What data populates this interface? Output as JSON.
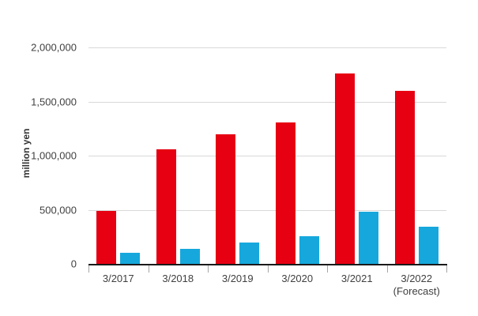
{
  "chart_data": {
    "type": "bar",
    "title": "",
    "xlabel": "",
    "ylabel": "million yen",
    "ylim": [
      0,
      2000000
    ],
    "grid": true,
    "legend": false,
    "yticks": [
      {
        "value": 0,
        "label": "0"
      },
      {
        "value": 500000,
        "label": "500,000"
      },
      {
        "value": 1000000,
        "label": "1,000,000"
      },
      {
        "value": 1500000,
        "label": "1,500,000"
      },
      {
        "value": 2000000,
        "label": "2,000,000"
      }
    ],
    "categories": [
      {
        "label": "3/2017",
        "sublabel": ""
      },
      {
        "label": "3/2018",
        "sublabel": ""
      },
      {
        "label": "3/2019",
        "sublabel": ""
      },
      {
        "label": "3/2020",
        "sublabel": ""
      },
      {
        "label": "3/2021",
        "sublabel": ""
      },
      {
        "label": "3/2022",
        "sublabel": "(Forecast)"
      }
    ],
    "series": [
      {
        "name": "red",
        "color": "#e60012",
        "values": [
          490000,
          1055000,
          1200000,
          1305000,
          1760000,
          1600000
        ]
      },
      {
        "name": "blue",
        "color": "#16a8dc",
        "values": [
          100000,
          140000,
          195000,
          255000,
          480000,
          340000
        ]
      }
    ]
  },
  "colors": {
    "gridline": "#d9d9d9",
    "axis_line": "#1a1a1a",
    "tick_mark": "#a6a6a6",
    "label_text": "#404040"
  }
}
